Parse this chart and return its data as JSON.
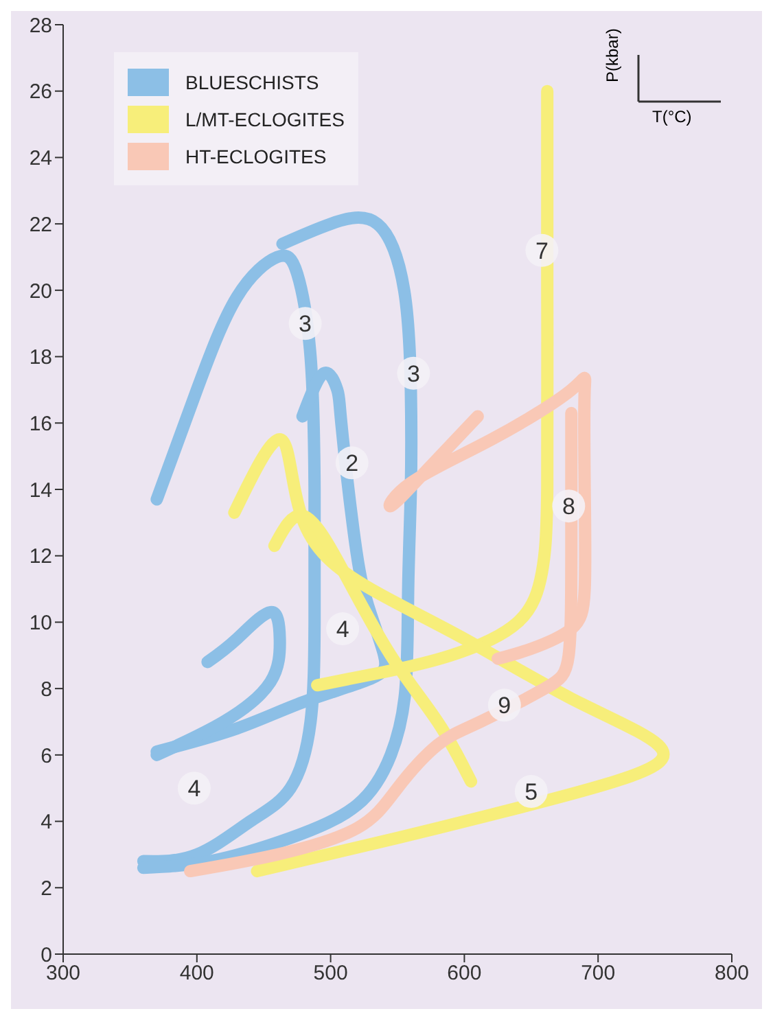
{
  "chart_data": {
    "type": "line",
    "xlim": [
      300,
      800
    ],
    "ylim": [
      0,
      28
    ],
    "xticks": [
      300,
      400,
      500,
      600,
      700,
      800
    ],
    "yticks": [
      0,
      2,
      4,
      6,
      8,
      10,
      12,
      14,
      16,
      18,
      20,
      22,
      24,
      26,
      28
    ],
    "legend": "top left",
    "marker": "none",
    "line_style": "solid",
    "series": [
      {
        "name": "BLUESCHISTS",
        "color": "#8cbfe6",
        "x": [
          370,
          400,
          430,
          460,
          475,
          485,
          488,
          488,
          485,
          470,
          440,
          400,
          360
        ],
        "values": [
          13.7,
          17,
          19.8,
          21,
          20.5,
          18,
          14,
          10,
          7,
          5,
          4,
          3,
          2.8
        ]
      },
      {
        "color": "#8cbfe6",
        "x": [
          464,
          500,
          535,
          555,
          560,
          560,
          558,
          556,
          545,
          520,
          470,
          410,
          360
        ],
        "values": [
          21.4,
          22,
          22,
          20,
          17,
          14,
          11,
          8,
          6,
          4.5,
          3.5,
          2.8,
          2.6
        ]
      },
      {
        "color": "#8cbfe6",
        "x": [
          479,
          495,
          505,
          508,
          518,
          528,
          540,
          530,
          480,
          430,
          370
        ],
        "values": [
          16.2,
          17.5,
          17,
          16,
          12.5,
          10.5,
          9,
          8.3,
          7.6,
          6.8,
          6.1
        ]
      },
      {
        "color": "#8cbfe6",
        "x": [
          408,
          430,
          455,
          462,
          455,
          420,
          370
        ],
        "values": [
          8.8,
          9.5,
          10.3,
          9.5,
          8.2,
          7,
          6
        ]
      },
      {
        "name": "L/MT-ECLOGITES",
        "color": "#f7ee7a",
        "x": [
          662,
          662,
          662,
          658,
          640,
          590,
          540,
          490
        ],
        "values": [
          26,
          20,
          14,
          11.5,
          10,
          9,
          8.5,
          8.1
        ]
      },
      {
        "color": "#f7ee7a",
        "x": [
          428,
          463,
          480,
          530,
          600,
          680,
          745,
          720,
          620,
          550,
          445
        ],
        "values": [
          13.3,
          15.5,
          13,
          11,
          9.5,
          7.7,
          6.3,
          5.3,
          4.2,
          3.5,
          2.5
        ]
      },
      {
        "color": "#f7ee7a",
        "x": [
          458,
          480,
          510,
          545,
          580,
          605
        ],
        "values": [
          12.3,
          13.2,
          11.5,
          9,
          7,
          5.2
        ]
      },
      {
        "name": "HT-ECLOGITES",
        "color": "#f9c8b6",
        "x": [
          610,
          570,
          545,
          560,
          620,
          680,
          690,
          690,
          690,
          680,
          650,
          625
        ],
        "values": [
          16.2,
          14.5,
          13.5,
          14.2,
          15.5,
          17,
          17,
          14,
          11,
          9.8,
          9.2,
          8.9
        ]
      },
      {
        "color": "#f9c8b6",
        "x": [
          680,
          680,
          678,
          660,
          612,
          580,
          550,
          520,
          460,
          395
        ],
        "values": [
          16.3,
          12,
          9,
          8,
          7.0,
          6.3,
          5,
          3.8,
          3,
          2.5
        ]
      }
    ],
    "annotations": [
      "P(kbar)",
      "T(°C)",
      {
        "text": "3",
        "x": 481,
        "y": 19
      },
      {
        "text": "3",
        "x": 562,
        "y": 17.5
      },
      {
        "text": "2",
        "x": 516,
        "y": 14.8
      },
      {
        "text": "4",
        "x": 509,
        "y": 9.8
      },
      {
        "text": "4",
        "x": 398,
        "y": 5
      },
      {
        "text": "7",
        "x": 658,
        "y": 21.2
      },
      {
        "text": "8",
        "x": 678,
        "y": 13.5
      },
      {
        "text": "9",
        "x": 630,
        "y": 7.5
      },
      {
        "text": "5",
        "x": 650,
        "y": 4.9
      }
    ]
  }
}
